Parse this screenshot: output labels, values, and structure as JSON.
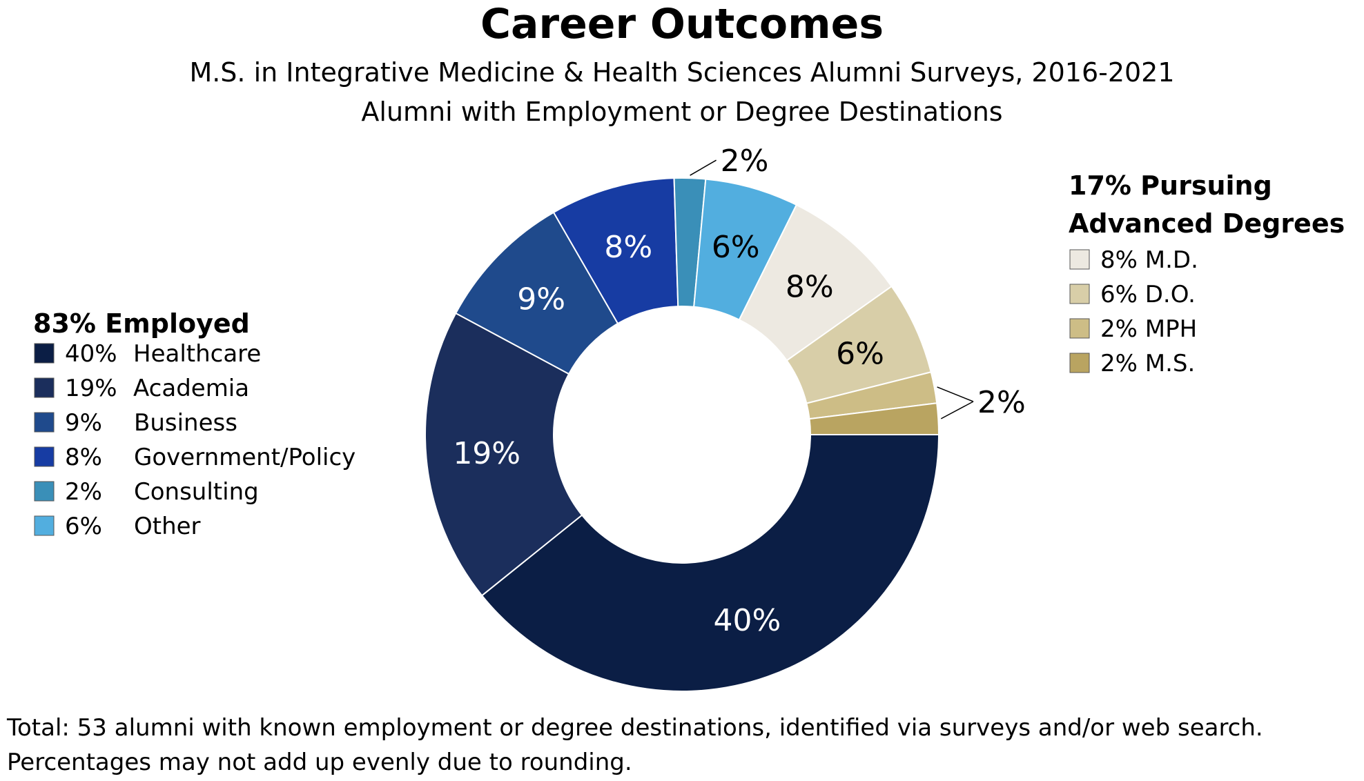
{
  "chart_data": {
    "type": "pie",
    "donut": true,
    "title": "Career Outcomes",
    "subtitle_lines": [
      "M.S. in Integrative Medicine & Health Sciences Alumni Surveys, 2016-2021",
      "Alumni with Employment or Degree Destinations"
    ],
    "slices": [
      {
        "name": "Healthcare",
        "value": 40,
        "label": "40%",
        "color": "#0b1e45",
        "label_color": "#ffffff",
        "group": "employed"
      },
      {
        "name": "Academia",
        "value": 19,
        "label": "19%",
        "color": "#1b2e5c",
        "label_color": "#ffffff",
        "group": "employed"
      },
      {
        "name": "Business",
        "value": 9,
        "label": "9%",
        "color": "#1f4a8c",
        "label_color": "#ffffff",
        "group": "employed"
      },
      {
        "name": "Government/Policy",
        "value": 8,
        "label": "8%",
        "color": "#173ca3",
        "label_color": "#ffffff",
        "group": "employed"
      },
      {
        "name": "Consulting",
        "value": 2,
        "label": "2%",
        "color": "#3a8fb8",
        "label_color": "#000000",
        "group": "employed",
        "callout": true
      },
      {
        "name": "Other",
        "value": 6,
        "label": "6%",
        "color": "#52aedf",
        "label_color": "#000000",
        "group": "employed"
      },
      {
        "name": "M.D.",
        "value": 8,
        "label": "8%",
        "color": "#ede9e1",
        "label_color": "#000000",
        "group": "degrees"
      },
      {
        "name": "D.O.",
        "value": 6,
        "label": "6%",
        "color": "#d8cea8",
        "label_color": "#000000",
        "group": "degrees"
      },
      {
        "name": "MPH",
        "value": 2,
        "label": "",
        "color": "#cdbd86",
        "label_color": "#000000",
        "group": "degrees",
        "callout_shared": true
      },
      {
        "name": "M.S.",
        "value": 2,
        "label": "",
        "color": "#b9a461",
        "label_color": "#000000",
        "group": "degrees",
        "callout_shared": true
      }
    ],
    "shared_callout_label": "2%",
    "legend_employed": {
      "heading": "83% Employed",
      "items": [
        {
          "pct": "40%",
          "label": "Healthcare",
          "color": "#0b1e45"
        },
        {
          "pct": "19%",
          "label": "Academia",
          "color": "#1b2e5c"
        },
        {
          "pct": "9%",
          "label": "Business",
          "color": "#1f4a8c"
        },
        {
          "pct": "8%",
          "label": "Government/Policy",
          "color": "#173ca3"
        },
        {
          "pct": "2%",
          "label": "Consulting",
          "color": "#3a8fb8"
        },
        {
          "pct": "6%",
          "label": "Other",
          "color": "#52aedf"
        }
      ]
    },
    "legend_degrees": {
      "heading_lines": [
        "17% Pursuing",
        "Advanced Degrees"
      ],
      "items": [
        {
          "label": "8% M.D.",
          "color": "#ede9e1"
        },
        {
          "label": "6% D.O.",
          "color": "#d8cea8"
        },
        {
          "label": "2% MPH",
          "color": "#cdbd86"
        },
        {
          "label": "2% M.S.",
          "color": "#b9a461"
        }
      ]
    },
    "footnote_lines": [
      "Total: 53 alumni with known employment or degree destinations, identified via surveys and/or web search.",
      "Percentages may not add up evenly due to rounding."
    ]
  }
}
